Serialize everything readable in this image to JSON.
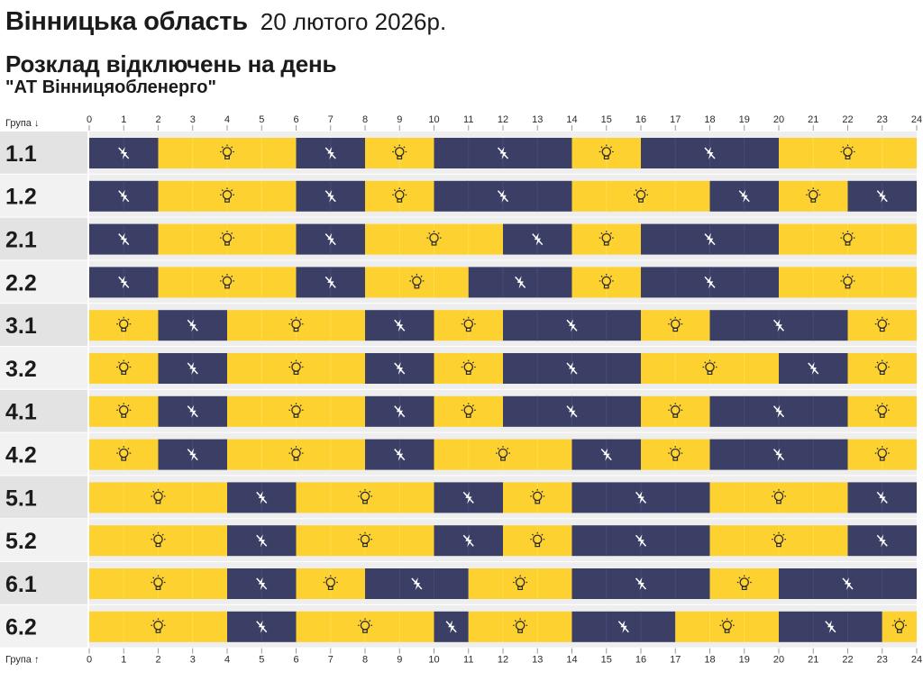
{
  "header": {
    "region": "Вінницька область",
    "date": "20 лютого 2026р.",
    "subtitle": "Розклад відключень на день",
    "company": "\"АТ Вінницяобленерго\""
  },
  "axis": {
    "top_label": "Група ↓",
    "bottom_label": "Група ↑",
    "ticks": [
      "0",
      "1",
      "2",
      "3",
      "4",
      "5",
      "6",
      "7",
      "8",
      "9",
      "10",
      "11",
      "12",
      "13",
      "14",
      "15",
      "16",
      "17",
      "18",
      "19",
      "20",
      "21",
      "22",
      "23",
      "24"
    ]
  },
  "colors": {
    "on": "#fdd12f",
    "on_light": "#ffdc4a",
    "off": "#3b3f66",
    "off_light": "#474b74",
    "row_bg": "#eeeeee",
    "label_bg_dark": "#e3e3e3",
    "label_bg_light": "#f2f2f2"
  },
  "legend_icons": {
    "on": "lightbulb-icon",
    "off": "power-off-icon"
  },
  "chart_data": {
    "type": "timeline",
    "title": "Розклад відключень на день",
    "x_unit": "hour",
    "xlim": [
      0,
      24
    ],
    "states": [
      "on",
      "off"
    ],
    "groups": [
      {
        "name": "1.1",
        "segments": [
          {
            "s": "off",
            "from": 0,
            "to": 2
          },
          {
            "s": "on",
            "from": 2,
            "to": 6
          },
          {
            "s": "off",
            "from": 6,
            "to": 8
          },
          {
            "s": "on",
            "from": 8,
            "to": 10
          },
          {
            "s": "off",
            "from": 10,
            "to": 14
          },
          {
            "s": "on",
            "from": 14,
            "to": 16
          },
          {
            "s": "off",
            "from": 16,
            "to": 20
          },
          {
            "s": "on",
            "from": 20,
            "to": 24
          }
        ]
      },
      {
        "name": "1.2",
        "segments": [
          {
            "s": "off",
            "from": 0,
            "to": 2
          },
          {
            "s": "on",
            "from": 2,
            "to": 6
          },
          {
            "s": "off",
            "from": 6,
            "to": 8
          },
          {
            "s": "on",
            "from": 8,
            "to": 10
          },
          {
            "s": "off",
            "from": 10,
            "to": 14
          },
          {
            "s": "on",
            "from": 14,
            "to": 18
          },
          {
            "s": "off",
            "from": 18,
            "to": 20
          },
          {
            "s": "on",
            "from": 20,
            "to": 22
          },
          {
            "s": "off",
            "from": 22,
            "to": 24
          }
        ]
      },
      {
        "name": "2.1",
        "segments": [
          {
            "s": "off",
            "from": 0,
            "to": 2
          },
          {
            "s": "on",
            "from": 2,
            "to": 6
          },
          {
            "s": "off",
            "from": 6,
            "to": 8
          },
          {
            "s": "on",
            "from": 8,
            "to": 12
          },
          {
            "s": "off",
            "from": 12,
            "to": 14
          },
          {
            "s": "on",
            "from": 14,
            "to": 16
          },
          {
            "s": "off",
            "from": 16,
            "to": 20
          },
          {
            "s": "on",
            "from": 20,
            "to": 24
          }
        ]
      },
      {
        "name": "2.2",
        "segments": [
          {
            "s": "off",
            "from": 0,
            "to": 2
          },
          {
            "s": "on",
            "from": 2,
            "to": 6
          },
          {
            "s": "off",
            "from": 6,
            "to": 8
          },
          {
            "s": "on",
            "from": 8,
            "to": 11
          },
          {
            "s": "off",
            "from": 11,
            "to": 14
          },
          {
            "s": "on",
            "from": 14,
            "to": 16
          },
          {
            "s": "off",
            "from": 16,
            "to": 20
          },
          {
            "s": "on",
            "from": 20,
            "to": 24
          }
        ]
      },
      {
        "name": "3.1",
        "segments": [
          {
            "s": "on",
            "from": 0,
            "to": 2
          },
          {
            "s": "off",
            "from": 2,
            "to": 4
          },
          {
            "s": "on",
            "from": 4,
            "to": 8
          },
          {
            "s": "off",
            "from": 8,
            "to": 10
          },
          {
            "s": "on",
            "from": 10,
            "to": 12
          },
          {
            "s": "off",
            "from": 12,
            "to": 16
          },
          {
            "s": "on",
            "from": 16,
            "to": 18
          },
          {
            "s": "off",
            "from": 18,
            "to": 22
          },
          {
            "s": "on",
            "from": 22,
            "to": 24
          }
        ]
      },
      {
        "name": "3.2",
        "segments": [
          {
            "s": "on",
            "from": 0,
            "to": 2
          },
          {
            "s": "off",
            "from": 2,
            "to": 4
          },
          {
            "s": "on",
            "from": 4,
            "to": 8
          },
          {
            "s": "off",
            "from": 8,
            "to": 10
          },
          {
            "s": "on",
            "from": 10,
            "to": 12
          },
          {
            "s": "off",
            "from": 12,
            "to": 16
          },
          {
            "s": "on",
            "from": 16,
            "to": 20
          },
          {
            "s": "off",
            "from": 20,
            "to": 22
          },
          {
            "s": "on",
            "from": 22,
            "to": 24
          }
        ]
      },
      {
        "name": "4.1",
        "segments": [
          {
            "s": "on",
            "from": 0,
            "to": 2
          },
          {
            "s": "off",
            "from": 2,
            "to": 4
          },
          {
            "s": "on",
            "from": 4,
            "to": 8
          },
          {
            "s": "off",
            "from": 8,
            "to": 10
          },
          {
            "s": "on",
            "from": 10,
            "to": 12
          },
          {
            "s": "off",
            "from": 12,
            "to": 16
          },
          {
            "s": "on",
            "from": 16,
            "to": 18
          },
          {
            "s": "off",
            "from": 18,
            "to": 22
          },
          {
            "s": "on",
            "from": 22,
            "to": 24
          }
        ]
      },
      {
        "name": "4.2",
        "segments": [
          {
            "s": "on",
            "from": 0,
            "to": 2
          },
          {
            "s": "off",
            "from": 2,
            "to": 4
          },
          {
            "s": "on",
            "from": 4,
            "to": 8
          },
          {
            "s": "off",
            "from": 8,
            "to": 10
          },
          {
            "s": "on",
            "from": 10,
            "to": 14
          },
          {
            "s": "off",
            "from": 14,
            "to": 16
          },
          {
            "s": "on",
            "from": 16,
            "to": 18
          },
          {
            "s": "off",
            "from": 18,
            "to": 22
          },
          {
            "s": "on",
            "from": 22,
            "to": 24
          }
        ]
      },
      {
        "name": "5.1",
        "segments": [
          {
            "s": "on",
            "from": 0,
            "to": 4
          },
          {
            "s": "off",
            "from": 4,
            "to": 6
          },
          {
            "s": "on",
            "from": 6,
            "to": 10
          },
          {
            "s": "off",
            "from": 10,
            "to": 12
          },
          {
            "s": "on",
            "from": 12,
            "to": 14
          },
          {
            "s": "off",
            "from": 14,
            "to": 18
          },
          {
            "s": "on",
            "from": 18,
            "to": 22
          },
          {
            "s": "off",
            "from": 22,
            "to": 24
          }
        ]
      },
      {
        "name": "5.2",
        "segments": [
          {
            "s": "on",
            "from": 0,
            "to": 4
          },
          {
            "s": "off",
            "from": 4,
            "to": 6
          },
          {
            "s": "on",
            "from": 6,
            "to": 10
          },
          {
            "s": "off",
            "from": 10,
            "to": 12
          },
          {
            "s": "on",
            "from": 12,
            "to": 14
          },
          {
            "s": "off",
            "from": 14,
            "to": 18
          },
          {
            "s": "on",
            "from": 18,
            "to": 22
          },
          {
            "s": "off",
            "from": 22,
            "to": 24
          }
        ]
      },
      {
        "name": "6.1",
        "segments": [
          {
            "s": "on",
            "from": 0,
            "to": 4
          },
          {
            "s": "off",
            "from": 4,
            "to": 6
          },
          {
            "s": "on",
            "from": 6,
            "to": 8
          },
          {
            "s": "off",
            "from": 8,
            "to": 11
          },
          {
            "s": "on",
            "from": 11,
            "to": 14
          },
          {
            "s": "off",
            "from": 14,
            "to": 18
          },
          {
            "s": "on",
            "from": 18,
            "to": 20
          },
          {
            "s": "off",
            "from": 20,
            "to": 24
          }
        ]
      },
      {
        "name": "6.2",
        "segments": [
          {
            "s": "on",
            "from": 0,
            "to": 4
          },
          {
            "s": "off",
            "from": 4,
            "to": 6
          },
          {
            "s": "on",
            "from": 6,
            "to": 10
          },
          {
            "s": "off",
            "from": 10,
            "to": 11
          },
          {
            "s": "on",
            "from": 11,
            "to": 14
          },
          {
            "s": "off",
            "from": 14,
            "to": 17
          },
          {
            "s": "on",
            "from": 17,
            "to": 20
          },
          {
            "s": "off",
            "from": 20,
            "to": 23
          },
          {
            "s": "on",
            "from": 23,
            "to": 24
          }
        ]
      }
    ]
  }
}
